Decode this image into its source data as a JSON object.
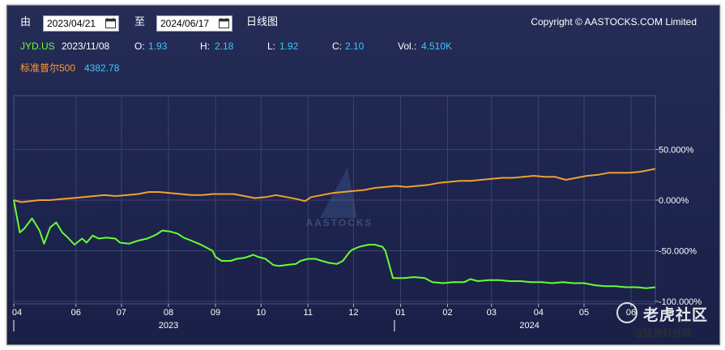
{
  "toolbar": {
    "from_label": "由",
    "from_date": "2023/04/21",
    "to_label": "至",
    "to_date": "2024/06/17",
    "chart_kind_label": "日线图",
    "copyright": "Copyright © AASTOCKS.COM Limited"
  },
  "info": {
    "symbol": "JYD.US",
    "date": "2023/11/08",
    "open_label": "O:",
    "open": "1.93",
    "high_label": "H:",
    "high": "2.18",
    "low_label": "L:",
    "low": "1.92",
    "close_label": "C:",
    "close": "2.10",
    "vol_label": "Vol.:",
    "vol": "4.510K",
    "index_name": "标准普尔500",
    "index_value": "4382.78"
  },
  "watermark": {
    "center_text": "AASTOCKS",
    "brand": "老虎社区",
    "handle": "@猛兽财经网"
  },
  "colors": {
    "jyd": "#66ff33",
    "spx": "#f0a030",
    "value_text": "#3cc7ff"
  },
  "chart_data": {
    "type": "line",
    "x_month_labels": [
      "04",
      "06",
      "07",
      "08",
      "09",
      "10",
      "11",
      "12",
      "01",
      "02",
      "03",
      "04",
      "05",
      "06"
    ],
    "x_year_labels": [
      "2023",
      "2024"
    ],
    "y_ticks": [
      "50.000%",
      "0.000%",
      "-50.000%",
      "-100.000%"
    ],
    "y_tick_values": [
      50,
      0,
      -50,
      -100
    ],
    "ylim": [
      -105,
      100
    ],
    "x_range": [
      "2023-04-21",
      "2024-06-17"
    ],
    "grid": true,
    "series": [
      {
        "name": "JYD.US",
        "color": "#66ff33",
        "points": [
          [
            "2023-04-21",
            0
          ],
          [
            "2023-04-25",
            -32
          ],
          [
            "2023-04-28",
            -28
          ],
          [
            "2023-05-03",
            -18
          ],
          [
            "2023-05-08",
            -30
          ],
          [
            "2023-05-11",
            -43
          ],
          [
            "2023-05-15",
            -27
          ],
          [
            "2023-05-19",
            -22
          ],
          [
            "2023-05-23",
            -32
          ],
          [
            "2023-05-26",
            -36
          ],
          [
            "2023-05-31",
            -44
          ],
          [
            "2023-06-05",
            -38
          ],
          [
            "2023-06-08",
            -42
          ],
          [
            "2023-06-12",
            -35
          ],
          [
            "2023-06-16",
            -38
          ],
          [
            "2023-06-21",
            -37
          ],
          [
            "2023-06-27",
            -38
          ],
          [
            "2023-06-30",
            -42
          ],
          [
            "2023-07-06",
            -43
          ],
          [
            "2023-07-12",
            -40
          ],
          [
            "2023-07-18",
            -38
          ],
          [
            "2023-07-24",
            -34
          ],
          [
            "2023-07-28",
            -30
          ],
          [
            "2023-08-02",
            -31
          ],
          [
            "2023-08-07",
            -33
          ],
          [
            "2023-08-11",
            -37
          ],
          [
            "2023-08-16",
            -40
          ],
          [
            "2023-08-21",
            -43
          ],
          [
            "2023-08-25",
            -46
          ],
          [
            "2023-08-30",
            -50
          ],
          [
            "2023-09-01",
            -56
          ],
          [
            "2023-09-05",
            -60
          ],
          [
            "2023-09-11",
            -60
          ],
          [
            "2023-09-15",
            -58
          ],
          [
            "2023-09-20",
            -57
          ],
          [
            "2023-09-26",
            -54
          ],
          [
            "2023-09-29",
            -56
          ],
          [
            "2023-10-04",
            -58
          ],
          [
            "2023-10-09",
            -64
          ],
          [
            "2023-10-13",
            -65
          ],
          [
            "2023-10-18",
            -64
          ],
          [
            "2023-10-24",
            -63
          ],
          [
            "2023-10-27",
            -60
          ],
          [
            "2023-11-01",
            -58
          ],
          [
            "2023-11-06",
            -58
          ],
          [
            "2023-11-10",
            -60
          ],
          [
            "2023-11-15",
            -62
          ],
          [
            "2023-11-20",
            -63
          ],
          [
            "2023-11-24",
            -60
          ],
          [
            "2023-11-28",
            -52
          ],
          [
            "2023-11-30",
            -49
          ],
          [
            "2023-12-05",
            -46
          ],
          [
            "2023-12-11",
            -44
          ],
          [
            "2023-12-15",
            -44
          ],
          [
            "2023-12-20",
            -46
          ],
          [
            "2023-12-22",
            -50
          ],
          [
            "2023-12-27",
            -77
          ],
          [
            "2024-01-03",
            -77
          ],
          [
            "2024-01-10",
            -76
          ],
          [
            "2024-01-17",
            -77
          ],
          [
            "2024-01-22",
            -81
          ],
          [
            "2024-01-29",
            -82
          ],
          [
            "2024-02-05",
            -81
          ],
          [
            "2024-02-12",
            -81
          ],
          [
            "2024-02-16",
            -78
          ],
          [
            "2024-02-21",
            -80
          ],
          [
            "2024-02-28",
            -79
          ],
          [
            "2024-03-06",
            -79
          ],
          [
            "2024-03-13",
            -80
          ],
          [
            "2024-03-20",
            -80
          ],
          [
            "2024-03-27",
            -81
          ],
          [
            "2024-04-03",
            -81
          ],
          [
            "2024-04-10",
            -82
          ],
          [
            "2024-04-17",
            -81
          ],
          [
            "2024-04-24",
            -82
          ],
          [
            "2024-05-01",
            -82
          ],
          [
            "2024-05-08",
            -84
          ],
          [
            "2024-05-15",
            -85
          ],
          [
            "2024-05-22",
            -85
          ],
          [
            "2024-05-29",
            -86
          ],
          [
            "2024-06-05",
            -86
          ],
          [
            "2024-06-11",
            -87
          ],
          [
            "2024-06-17",
            -86
          ]
        ]
      },
      {
        "name": "标准普尔500",
        "color": "#f0a030",
        "points": [
          [
            "2023-04-21",
            0
          ],
          [
            "2023-04-26",
            -2
          ],
          [
            "2023-05-02",
            -1
          ],
          [
            "2023-05-08",
            0
          ],
          [
            "2023-05-15",
            0
          ],
          [
            "2023-05-22",
            1
          ],
          [
            "2023-05-30",
            2
          ],
          [
            "2023-06-06",
            3
          ],
          [
            "2023-06-13",
            4
          ],
          [
            "2023-06-20",
            5
          ],
          [
            "2023-06-27",
            4
          ],
          [
            "2023-07-05",
            5
          ],
          [
            "2023-07-12",
            6
          ],
          [
            "2023-07-19",
            8
          ],
          [
            "2023-07-26",
            8
          ],
          [
            "2023-08-02",
            7
          ],
          [
            "2023-08-09",
            6
          ],
          [
            "2023-08-16",
            5
          ],
          [
            "2023-08-23",
            5
          ],
          [
            "2023-08-30",
            6
          ],
          [
            "2023-09-06",
            6
          ],
          [
            "2023-09-13",
            6
          ],
          [
            "2023-09-20",
            4
          ],
          [
            "2023-09-27",
            2
          ],
          [
            "2023-10-04",
            3
          ],
          [
            "2023-10-11",
            5
          ],
          [
            "2023-10-18",
            3
          ],
          [
            "2023-10-25",
            1
          ],
          [
            "2023-10-30",
            -1
          ],
          [
            "2023-11-03",
            3
          ],
          [
            "2023-11-10",
            5
          ],
          [
            "2023-11-17",
            7
          ],
          [
            "2023-11-24",
            8
          ],
          [
            "2023-12-01",
            9
          ],
          [
            "2023-12-08",
            10
          ],
          [
            "2023-12-15",
            12
          ],
          [
            "2023-12-22",
            13
          ],
          [
            "2023-12-29",
            14
          ],
          [
            "2024-01-05",
            13
          ],
          [
            "2024-01-12",
            14
          ],
          [
            "2024-01-19",
            15
          ],
          [
            "2024-01-26",
            17
          ],
          [
            "2024-02-02",
            18
          ],
          [
            "2024-02-09",
            19
          ],
          [
            "2024-02-16",
            19
          ],
          [
            "2024-02-23",
            20
          ],
          [
            "2024-03-01",
            21
          ],
          [
            "2024-03-08",
            22
          ],
          [
            "2024-03-15",
            22
          ],
          [
            "2024-03-22",
            23
          ],
          [
            "2024-03-29",
            24
          ],
          [
            "2024-04-05",
            23
          ],
          [
            "2024-04-12",
            23
          ],
          [
            "2024-04-19",
            20
          ],
          [
            "2024-04-26",
            22
          ],
          [
            "2024-05-03",
            24
          ],
          [
            "2024-05-10",
            25
          ],
          [
            "2024-05-17",
            27
          ],
          [
            "2024-05-24",
            27
          ],
          [
            "2024-05-31",
            27
          ],
          [
            "2024-06-07",
            28
          ],
          [
            "2024-06-14",
            30
          ],
          [
            "2024-06-17",
            31
          ]
        ]
      }
    ]
  }
}
